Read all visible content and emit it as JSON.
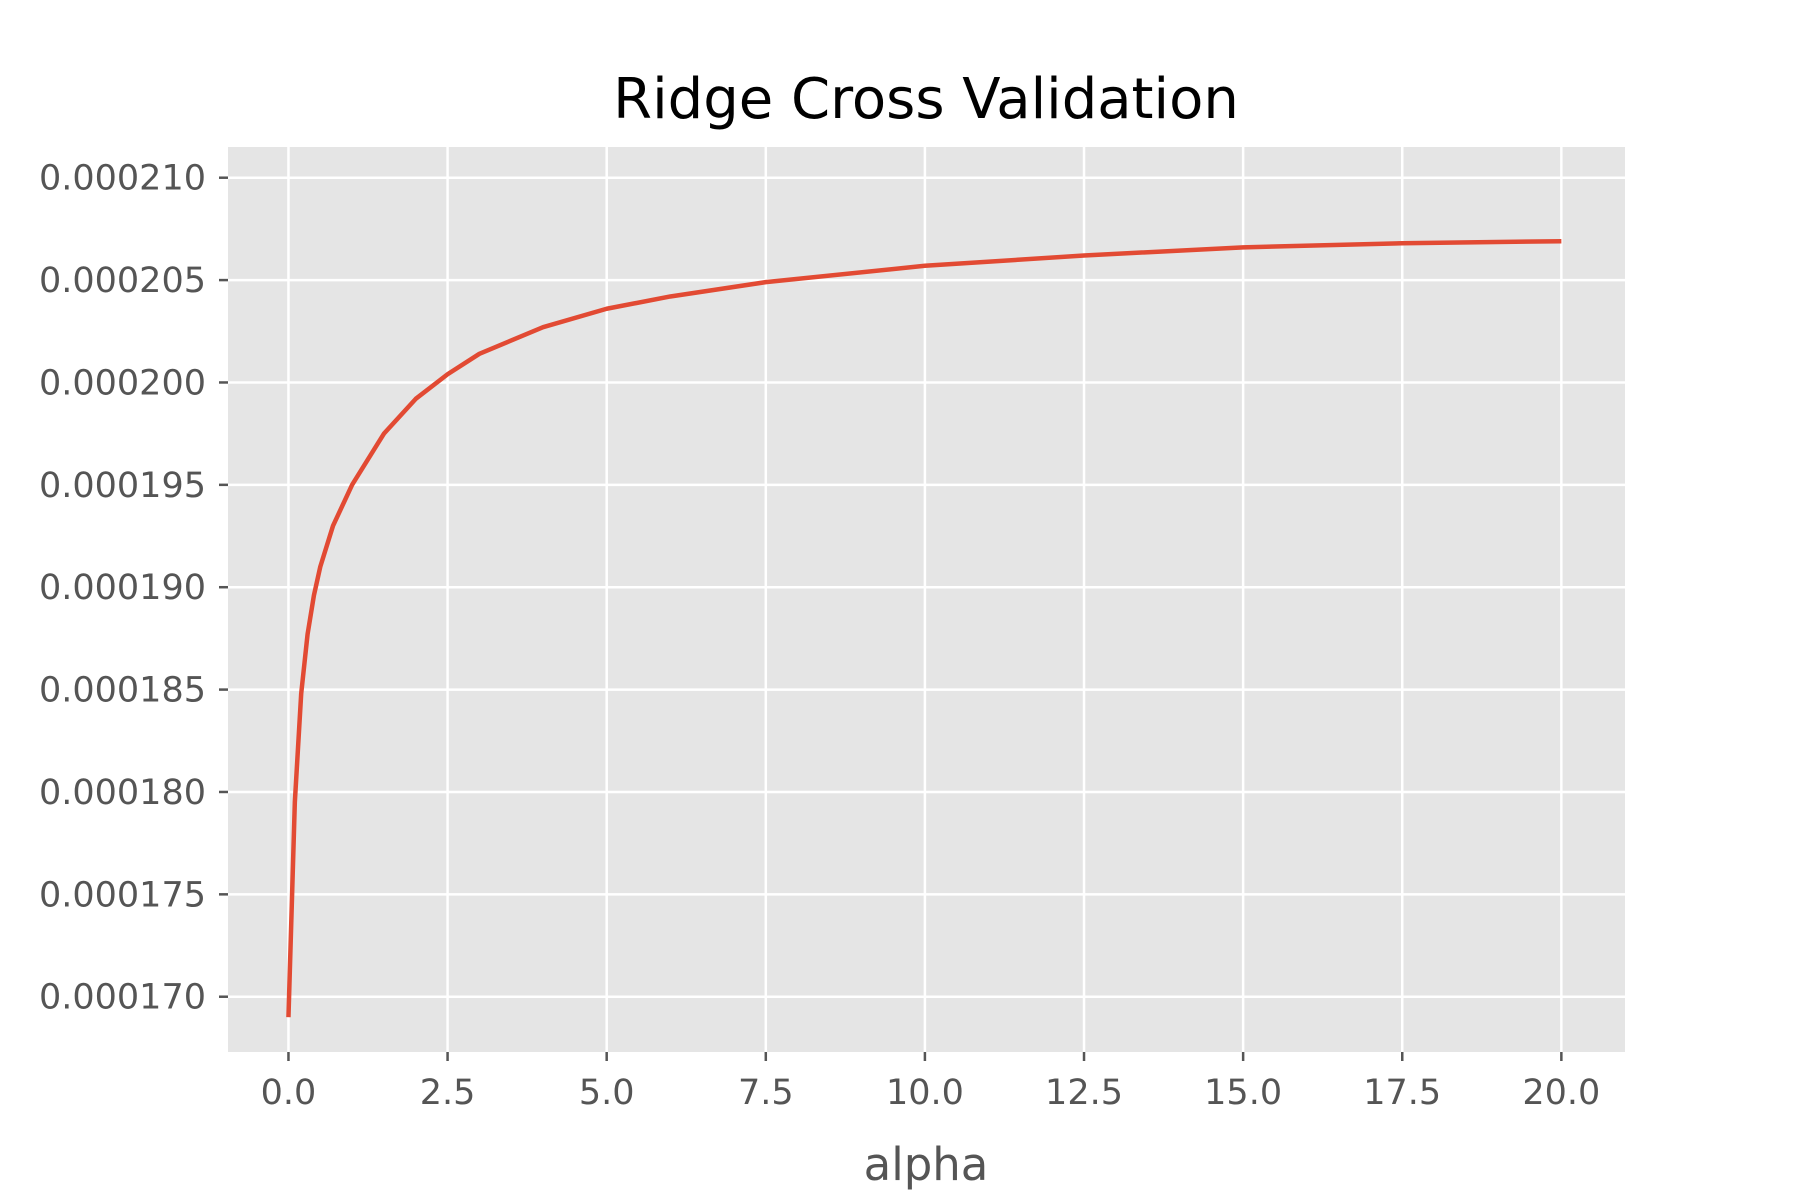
{
  "chart_data": {
    "type": "line",
    "title": "Ridge Cross Validation",
    "xlabel": "alpha",
    "ylabel": "",
    "xlim": [
      -0.95,
      21.0
    ],
    "ylim": [
      0.0001673,
      0.0002115
    ],
    "xticks": [
      0,
      2.5,
      5,
      7.5,
      10,
      12.5,
      15,
      17.5,
      20
    ],
    "xtick_labels": [
      "0.0",
      "2.5",
      "5.0",
      "7.5",
      "10.0",
      "12.5",
      "15.0",
      "17.5",
      "20.0"
    ],
    "yticks": [
      0.00017,
      0.000175,
      0.00018,
      0.000185,
      0.00019,
      0.000195,
      0.0002,
      0.000205,
      0.00021
    ],
    "ytick_labels": [
      "0.000170",
      "0.000175",
      "0.000180",
      "0.000185",
      "0.000190",
      "0.000195",
      "0.000200",
      "0.000205",
      "0.000210"
    ],
    "grid": true,
    "style": "ggplot",
    "colors": {
      "line": "#e24a33",
      "plot_bg": "#e5e5e5",
      "grid": "#ffffff",
      "tick": "#555555",
      "title": "#000000"
    },
    "series": [
      {
        "x": [
          0.0,
          0.1,
          0.2,
          0.3,
          0.4,
          0.5,
          0.7,
          1.0,
          1.5,
          2.0,
          2.5,
          3.0,
          4.0,
          5.0,
          6.0,
          7.5,
          10.0,
          12.5,
          15.0,
          17.5,
          20.0
        ],
        "y": [
          0.000169,
          0.0001795,
          0.0001848,
          0.0001877,
          0.0001896,
          0.000191,
          0.000193,
          0.000195,
          0.0001975,
          0.0001992,
          0.0002004,
          0.0002014,
          0.0002027,
          0.0002036,
          0.0002042,
          0.0002049,
          0.0002057,
          0.0002062,
          0.0002066,
          0.0002068,
          0.0002069
        ]
      }
    ]
  }
}
